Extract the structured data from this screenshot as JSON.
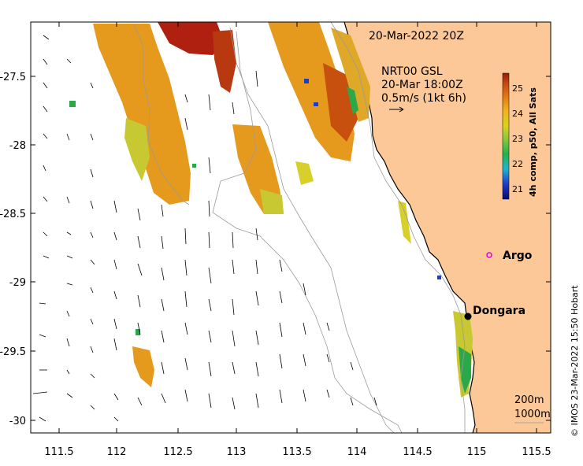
{
  "map": {
    "date_label": "20-Mar-2022 20Z",
    "current_source": "NRT00 GSL",
    "current_time": "20-Mar 18:00Z",
    "scale_label": "0.5m/s (1kt 6h)",
    "colorbar_title": "4h comp, p50, All Sats",
    "colorbar_ticks": [
      "25",
      "24",
      "23",
      "22",
      "21"
    ],
    "colorbar_range": [
      20.6,
      25.6
    ],
    "x_ticks": [
      "111.5",
      "112",
      "112.5",
      "113",
      "113.5",
      "114",
      "114.5",
      "115",
      "115.5"
    ],
    "y_ticks": [
      "-27.5",
      "-28",
      "-28.5",
      "-29",
      "-29.5",
      "-30"
    ],
    "lon_range": [
      111.3,
      115.6
    ],
    "lat_range": [
      -30.1,
      -27.1
    ],
    "places": [
      {
        "name": "Argo",
        "lon": 115.1,
        "lat": -28.83
      },
      {
        "name": "Dongara",
        "lon": 114.93,
        "lat": -29.25
      }
    ],
    "isobath_labels": [
      "200m",
      "1000m"
    ],
    "credit": "© IMOS 23-Mar-2022 15:50 Hobart",
    "colors": {
      "land": "#FCC898",
      "coast": "#000000",
      "isobath": "#9a9a9a",
      "argo": "#E000E0",
      "sst_warm": "#E59A1E",
      "sst_hot": "#B02010",
      "sst_cool": "#2BA84A"
    }
  }
}
